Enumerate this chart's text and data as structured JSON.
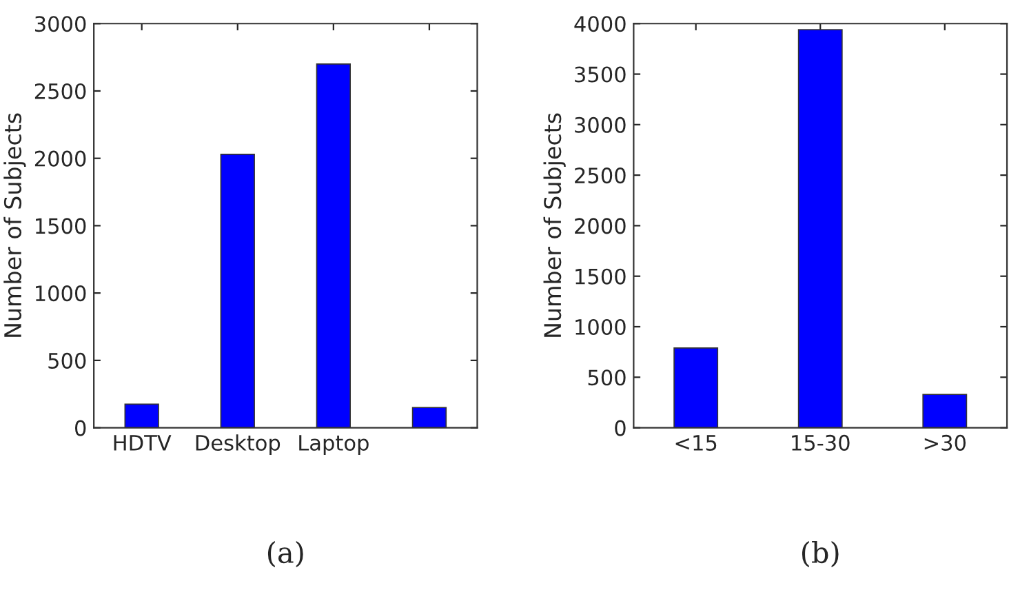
{
  "chart_data": [
    {
      "type": "bar",
      "categories": [
        "HDTV",
        "Desktop",
        "Laptop",
        null
      ],
      "values": [
        175,
        2030,
        2700,
        150
      ],
      "color": "#0000ff",
      "ylabel": "Number of Subjects",
      "xlabel": "(a)",
      "ylim": [
        0,
        3000
      ],
      "yticks": [
        0,
        500,
        1000,
        1500,
        2000,
        2500,
        3000
      ],
      "grid": false
    },
    {
      "type": "bar",
      "categories": [
        "<15",
        "15-30",
        ">30"
      ],
      "values": [
        790,
        3940,
        330
      ],
      "color": "#0000ff",
      "ylabel": "Number of Subjects",
      "xlabel": "(b)",
      "ylim": [
        0,
        4000
      ],
      "yticks": [
        0,
        500,
        1000,
        1500,
        2000,
        2500,
        3000,
        3500,
        4000
      ],
      "grid": false
    }
  ]
}
